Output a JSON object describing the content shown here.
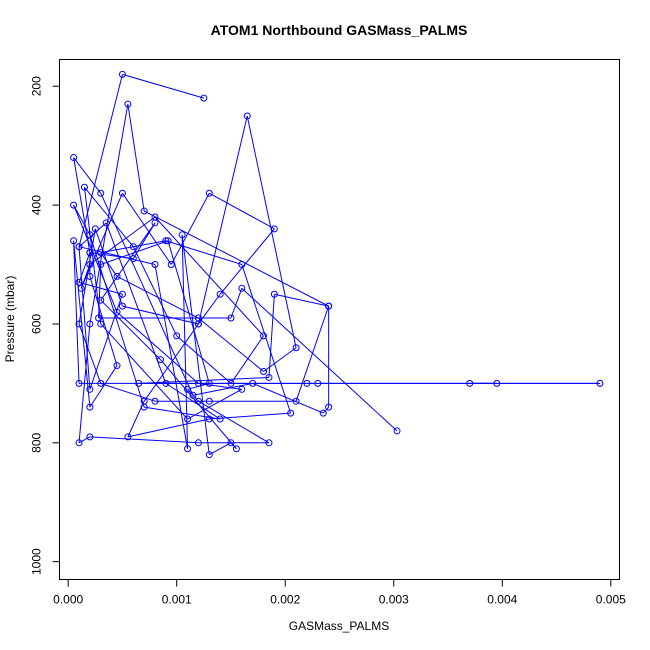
{
  "chart_data": {
    "type": "line",
    "title": "ATOM1 Northbound GASMass_PALMS",
    "xlabel": "GASMass_PALMS",
    "ylabel": "Pressure (mbar)",
    "xlim": [
      -8e-05,
      0.00508
    ],
    "ylim": [
      1030,
      155
    ],
    "y_reversed": true,
    "grid": false,
    "x_ticks": [
      "0.000",
      "0.001",
      "0.002",
      "0.003",
      "0.004",
      "0.005"
    ],
    "x_tick_values": [
      0,
      0.001,
      0.002,
      0.003,
      0.004,
      0.005
    ],
    "y_ticks": [
      "200",
      "400",
      "600",
      "800",
      "1000"
    ],
    "y_tick_values": [
      200,
      400,
      600,
      800,
      1000
    ],
    "color": "#0000ff",
    "series": [
      {
        "values": [
          [
            0.00125,
            220
          ],
          [
            0.0005,
            180
          ],
          [
            0.0001,
            470
          ],
          [
            0.00035,
            430
          ],
          [
            0.0009,
            700
          ],
          [
            0.0014,
            760
          ],
          [
            0.0007,
            740
          ],
          [
            0.0002,
            450
          ],
          [
            5e-05,
            400
          ],
          [
            0.00045,
            580
          ],
          [
            0.0012,
            700
          ],
          [
            0.0016,
            710
          ],
          [
            0.0011,
            760
          ],
          [
            0.0003,
            600
          ],
          [
            0.00015,
            370
          ],
          [
            0.0006,
            470
          ],
          [
            0.001,
            620
          ],
          [
            0.0015,
            700
          ],
          [
            0.0018,
            620
          ],
          [
            0.0008,
            420
          ],
          [
            0.0002,
            500
          ],
          [
            0.00012,
            540
          ],
          [
            0.0005,
            380
          ],
          [
            0.00095,
            500
          ],
          [
            0.0013,
            380
          ],
          [
            0.0019,
            440
          ],
          [
            0.0014,
            550
          ],
          [
            0.0012,
            600
          ],
          [
            0.0007,
            730
          ],
          [
            0.00055,
            790
          ],
          [
            0.0013,
            760
          ],
          [
            0.00205,
            750
          ],
          [
            0.0016,
            500
          ],
          [
            0.0009,
            460
          ],
          [
            0.0003,
            480
          ],
          [
            0.00045,
            520
          ],
          [
            0.0012,
            590
          ],
          [
            0.0018,
            680
          ],
          [
            0.0021,
            640
          ],
          [
            0.00165,
            250
          ],
          [
            0.0012,
            600
          ],
          [
            0.0005,
            570
          ],
          [
            0.00025,
            440
          ],
          [
            0.0001,
            600
          ],
          [
            0.0003,
            700
          ],
          [
            0.0008,
            730
          ],
          [
            0.0013,
            730
          ],
          [
            0.0021,
            730
          ],
          [
            0.0024,
            570
          ],
          [
            0.0024,
            740
          ],
          [
            0.00235,
            750
          ],
          [
            0.0017,
            700
          ],
          [
            0.00115,
            720
          ],
          [
            0.0003,
            380
          ],
          [
            5e-05,
            320
          ],
          [
            0.0002,
            480
          ],
          [
            0.0001,
            530
          ],
          [
            0.0005,
            550
          ],
          [
            0.0002,
            710
          ],
          [
            0.0001,
            470
          ],
          [
            0.0008,
            500
          ],
          [
            0.0011,
            810
          ],
          [
            0.00105,
            450
          ],
          [
            0.0013,
            820
          ],
          [
            0.0015,
            800
          ],
          [
            0.00155,
            810
          ],
          [
            0.00085,
            660
          ],
          [
            0.0003,
            560
          ],
          [
            0.0008,
            430
          ],
          [
            0.0006,
            490
          ],
          [
            0.0002,
            480
          ],
          [
            0.0002,
            520
          ],
          [
            0.00045,
            670
          ],
          [
            0.0002,
            740
          ],
          [
            5e-05,
            460
          ],
          [
            0.0001,
            700
          ],
          [
            0.0022,
            700
          ],
          [
            0.0023,
            700
          ],
          [
            0.0049,
            700
          ],
          [
            0.0037,
            700
          ],
          [
            0.00395,
            700
          ],
          [
            0.00065,
            700
          ],
          [
            0.00185,
            690
          ],
          [
            0.0019,
            550
          ],
          [
            0.0024,
            570
          ],
          [
            0.0007,
            410
          ],
          [
            0.00055,
            230
          ],
          [
            0.0002,
            600
          ],
          [
            0.0001,
            800
          ],
          [
            0.0002,
            790
          ],
          [
            0.0012,
            800
          ],
          [
            0.00185,
            800
          ],
          [
            0.0012,
            730
          ],
          [
            0.0011,
            710
          ],
          [
            0.0013,
            700
          ],
          [
            0.00092,
            460
          ],
          [
            0.0003,
            500
          ],
          [
            0.00028,
            590
          ],
          [
            0.0015,
            590
          ],
          [
            0.0016,
            540
          ],
          [
            0.00303,
            780
          ]
        ]
      }
    ]
  }
}
